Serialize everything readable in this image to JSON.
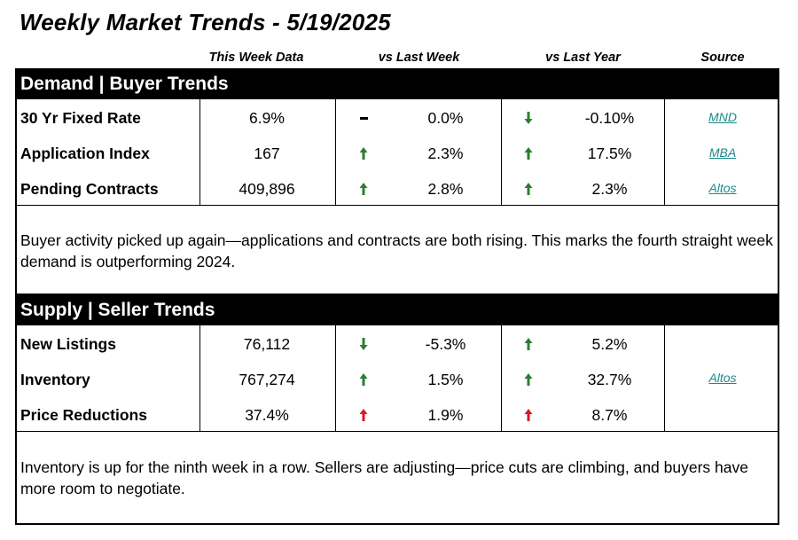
{
  "title": "Weekly Market Trends - 5/19/2025",
  "columns": {
    "this_week": "This Week Data",
    "vs_last_week": "vs Last Week",
    "vs_last_year": "vs Last Year",
    "source": "Source"
  },
  "demand": {
    "header": "Demand | Buyer Trends",
    "rows": [
      {
        "label": "30 Yr Fixed Rate",
        "value": "6.9%",
        "wk_dir": "flat",
        "wk": "0.0%",
        "yr_dir": "down",
        "yr": "-0.10%",
        "source": "MND"
      },
      {
        "label": "Application Index",
        "value": "167",
        "wk_dir": "up",
        "wk": "2.3%",
        "yr_dir": "up",
        "yr": "17.5%",
        "source": "MBA"
      },
      {
        "label": "Pending Contracts",
        "value": "409,896",
        "wk_dir": "up",
        "wk": "2.8%",
        "yr_dir": "up",
        "yr": "2.3%",
        "source": "Altos"
      }
    ],
    "note": "Buyer activity picked up again—applications and contracts are both rising. This marks the fourth straight week demand is outperforming 2024."
  },
  "supply": {
    "header": "Supply | Seller Trends",
    "rows": [
      {
        "label": "New Listings",
        "value": "76,112",
        "wk_dir": "down",
        "wk": "-5.3%",
        "yr_dir": "up",
        "yr": "5.2%"
      },
      {
        "label": "Inventory",
        "value": "767,274",
        "wk_dir": "up",
        "wk": "1.5%",
        "yr_dir": "up",
        "yr": "32.7%"
      },
      {
        "label": "Price Reductions",
        "value": "37.4%",
        "wk_dir": "up-red",
        "wk": "1.9%",
        "yr_dir": "up-red",
        "yr": "8.7%"
      }
    ],
    "source": "Altos",
    "note": "Inventory is up for the ninth week in a row. Sellers are adjusting—price cuts are climbing, and buyers have more room to negotiate."
  },
  "colors": {
    "green": "#2e7d32",
    "red": "#e0161b",
    "link": "#1a8a8a"
  }
}
